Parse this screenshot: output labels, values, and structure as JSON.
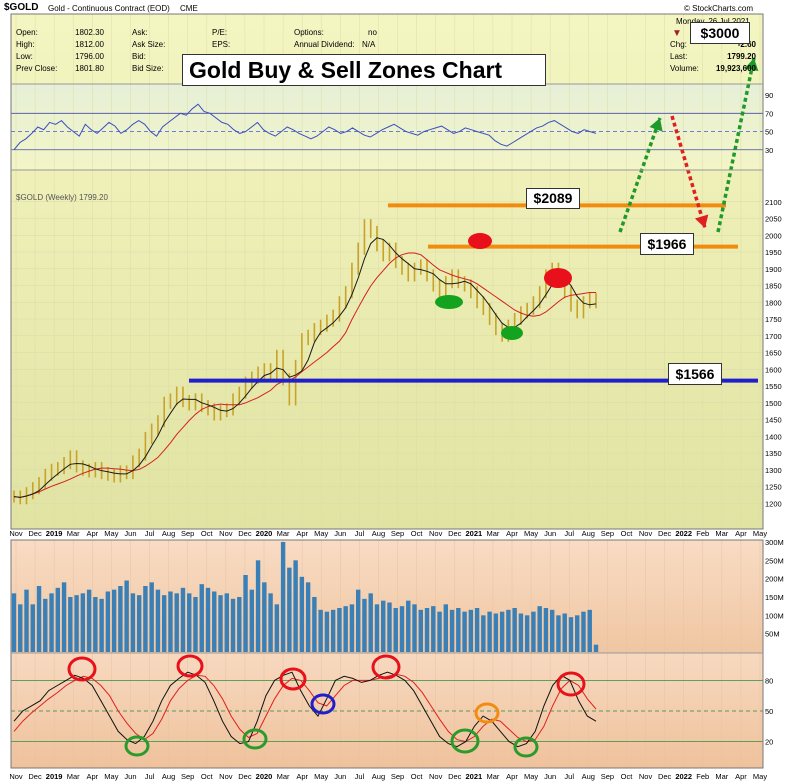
{
  "header": {
    "symbol": "$GOLD",
    "description": "Gold - Continuous Contract (EOD)",
    "exchange": "CME",
    "source": "© StockCharts.com",
    "date": "Monday, 26 Jul 2021",
    "fields": [
      {
        "label": "Open:",
        "value": "1802.30"
      },
      {
        "label": "High:",
        "value": "1812.00"
      },
      {
        "label": "Low:",
        "value": "1796.00"
      },
      {
        "label": "Prev Close:",
        "value": "1801.80"
      }
    ],
    "fields2": [
      {
        "label": "Ask:",
        "value": ""
      },
      {
        "label": "Ask Size:",
        "value": ""
      },
      {
        "label": "Bid:",
        "value": ""
      },
      {
        "label": "Bid Size:",
        "value": ""
      }
    ],
    "fields3": [
      {
        "label": "P/E:",
        "value": ""
      },
      {
        "label": "EPS:",
        "value": ""
      }
    ],
    "options_label": "Options:",
    "options_value": "no",
    "dividend_label": "Annual Dividend:",
    "dividend_value": "N/A",
    "fields4": [
      {
        "label": "Chg:",
        "value": "-2.60"
      },
      {
        "label": "Last:",
        "value": "1799.20"
      },
      {
        "label": "Volume:",
        "value": "19,923,600"
      }
    ]
  },
  "annotations": {
    "title": "Gold Buy & Sell Zones Chart",
    "target_3000": "$3000",
    "level_2089": "$2089",
    "level_1966": "$1966",
    "level_1566": "$1566"
  },
  "price_legend": "$GOLD (Weekly) 1799.20",
  "chart_data": [
    {
      "type": "line",
      "name": "rsi",
      "ylim": [
        10,
        100
      ],
      "ticks": [
        30,
        50,
        70,
        90
      ],
      "reference_lines": [
        30,
        50,
        70
      ],
      "values": [
        30,
        38,
        42,
        48,
        55,
        52,
        60,
        58,
        62,
        55,
        50,
        45,
        58,
        52,
        48,
        54,
        60,
        56,
        48,
        52,
        58,
        62,
        58,
        50,
        45,
        55,
        60,
        65,
        70,
        68,
        75,
        80,
        72,
        70,
        65,
        60,
        58,
        52,
        48,
        50,
        55,
        60,
        52,
        48,
        45,
        50,
        55,
        52,
        48,
        45,
        42,
        45,
        50,
        55,
        52,
        48,
        50,
        54,
        50,
        46,
        44,
        48,
        52,
        55,
        58,
        54,
        50,
        48,
        46,
        50,
        52,
        54,
        56,
        52,
        48,
        50,
        54,
        52,
        50,
        48,
        46,
        40,
        36,
        34,
        38,
        42,
        46,
        50,
        54,
        56,
        60,
        62,
        58,
        54,
        50,
        48,
        52,
        50,
        48
      ]
    },
    {
      "type": "bar",
      "name": "price",
      "ylim": [
        1150,
        2150
      ],
      "ticks": [
        1200,
        1250,
        1300,
        1350,
        1400,
        1450,
        1500,
        1550,
        1600,
        1650,
        1700,
        1750,
        1800,
        1850,
        1900,
        1950,
        2000,
        2050,
        2100
      ],
      "x_labels": [
        "Nov",
        "Dec",
        "2019",
        "Mar",
        "Apr",
        "May",
        "Jun",
        "Jul",
        "Aug",
        "Sep",
        "Oct",
        "Nov",
        "Dec",
        "2020",
        "Mar",
        "Apr",
        "May",
        "Jun",
        "Jul",
        "Aug",
        "Sep",
        "Oct",
        "Nov",
        "Dec",
        "2021",
        "Mar",
        "Apr",
        "May",
        "Jun",
        "Jul",
        "Aug",
        "Sep",
        "Oct",
        "Nov",
        "Dec",
        "2022",
        "Feb",
        "Mar",
        "Apr",
        "May"
      ],
      "close": [
        1220,
        1215,
        1230,
        1245,
        1260,
        1285,
        1300,
        1305,
        1320,
        1340,
        1310,
        1300,
        1295,
        1305,
        1290,
        1285,
        1280,
        1295,
        1290,
        1325,
        1345,
        1395,
        1420,
        1445,
        1500,
        1510,
        1530,
        1505,
        1495,
        1510,
        1490,
        1480,
        1465,
        1475,
        1480,
        1510,
        1530,
        1560,
        1575,
        1590,
        1600,
        1585,
        1640,
        1570,
        1510,
        1610,
        1690,
        1700,
        1720,
        1730,
        1745,
        1760,
        1800,
        1830,
        1900,
        1960,
        2030,
        2010,
        1970,
        1940,
        1960,
        1920,
        1900,
        1880,
        1900,
        1910,
        1880,
        1850,
        1830,
        1860,
        1880,
        1860,
        1850,
        1830,
        1800,
        1780,
        1750,
        1720,
        1700,
        1730,
        1750,
        1770,
        1780,
        1800,
        1830,
        1880,
        1900,
        1880,
        1830,
        1790,
        1770,
        1800,
        1810,
        1800
      ],
      "horizontal_levels": [
        {
          "value": 2089,
          "color": "#f28c0f"
        },
        {
          "value": 1966,
          "color": "#f28c0f"
        },
        {
          "value": 1566,
          "color": "#1f1fcc"
        }
      ]
    },
    {
      "type": "bar",
      "name": "volume",
      "ylim": [
        0,
        300
      ],
      "ticks": [
        "50M",
        "100M",
        "150M",
        "200M",
        "250M",
        "300M"
      ],
      "values": [
        160,
        130,
        170,
        130,
        180,
        145,
        160,
        175,
        190,
        150,
        155,
        160,
        170,
        150,
        145,
        165,
        170,
        180,
        195,
        160,
        155,
        180,
        190,
        170,
        155,
        165,
        160,
        175,
        160,
        150,
        185,
        175,
        165,
        155,
        160,
        145,
        150,
        210,
        170,
        250,
        190,
        160,
        130,
        300,
        230,
        250,
        205,
        190,
        150,
        115,
        110,
        115,
        120,
        125,
        130,
        170,
        145,
        160,
        130,
        140,
        135,
        120,
        125,
        140,
        130,
        115,
        120,
        125,
        110,
        130,
        115,
        120,
        110,
        115,
        120,
        100,
        110,
        105,
        110,
        115,
        120,
        105,
        100,
        110,
        125,
        120,
        115,
        100,
        105,
        95,
        100,
        110,
        115,
        20
      ]
    },
    {
      "type": "line",
      "name": "stochastic",
      "ylim": [
        0,
        100
      ],
      "ticks": [
        20,
        50,
        80
      ],
      "reference_lines": [
        20,
        50,
        80
      ],
      "k": [
        40,
        50,
        55,
        60,
        70,
        75,
        80,
        85,
        82,
        75,
        60,
        45,
        30,
        22,
        18,
        25,
        40,
        60,
        75,
        82,
        88,
        85,
        78,
        60,
        40,
        25,
        18,
        20,
        40,
        65,
        80,
        85,
        88,
        70,
        55,
        45,
        62,
        80,
        84,
        82,
        78,
        80,
        85,
        88,
        85,
        80,
        70,
        55,
        40,
        25,
        18,
        15,
        20,
        35,
        45,
        40,
        30,
        20,
        15,
        18,
        30,
        55,
        75,
        85,
        80,
        60,
        45,
        40
      ],
      "d": [
        30,
        40,
        48,
        55,
        62,
        68,
        75,
        80,
        84,
        82,
        75,
        65,
        50,
        38,
        28,
        22,
        28,
        42,
        60,
        72,
        80,
        85,
        84,
        75,
        62,
        45,
        32,
        24,
        28,
        45,
        62,
        75,
        82,
        80,
        70,
        58,
        55,
        65,
        75,
        80,
        80,
        80,
        82,
        84,
        86,
        84,
        78,
        68,
        55,
        42,
        30,
        22,
        20,
        25,
        35,
        42,
        40,
        32,
        24,
        20,
        22,
        35,
        55,
        72,
        80,
        75,
        62,
        52
      ]
    }
  ]
}
